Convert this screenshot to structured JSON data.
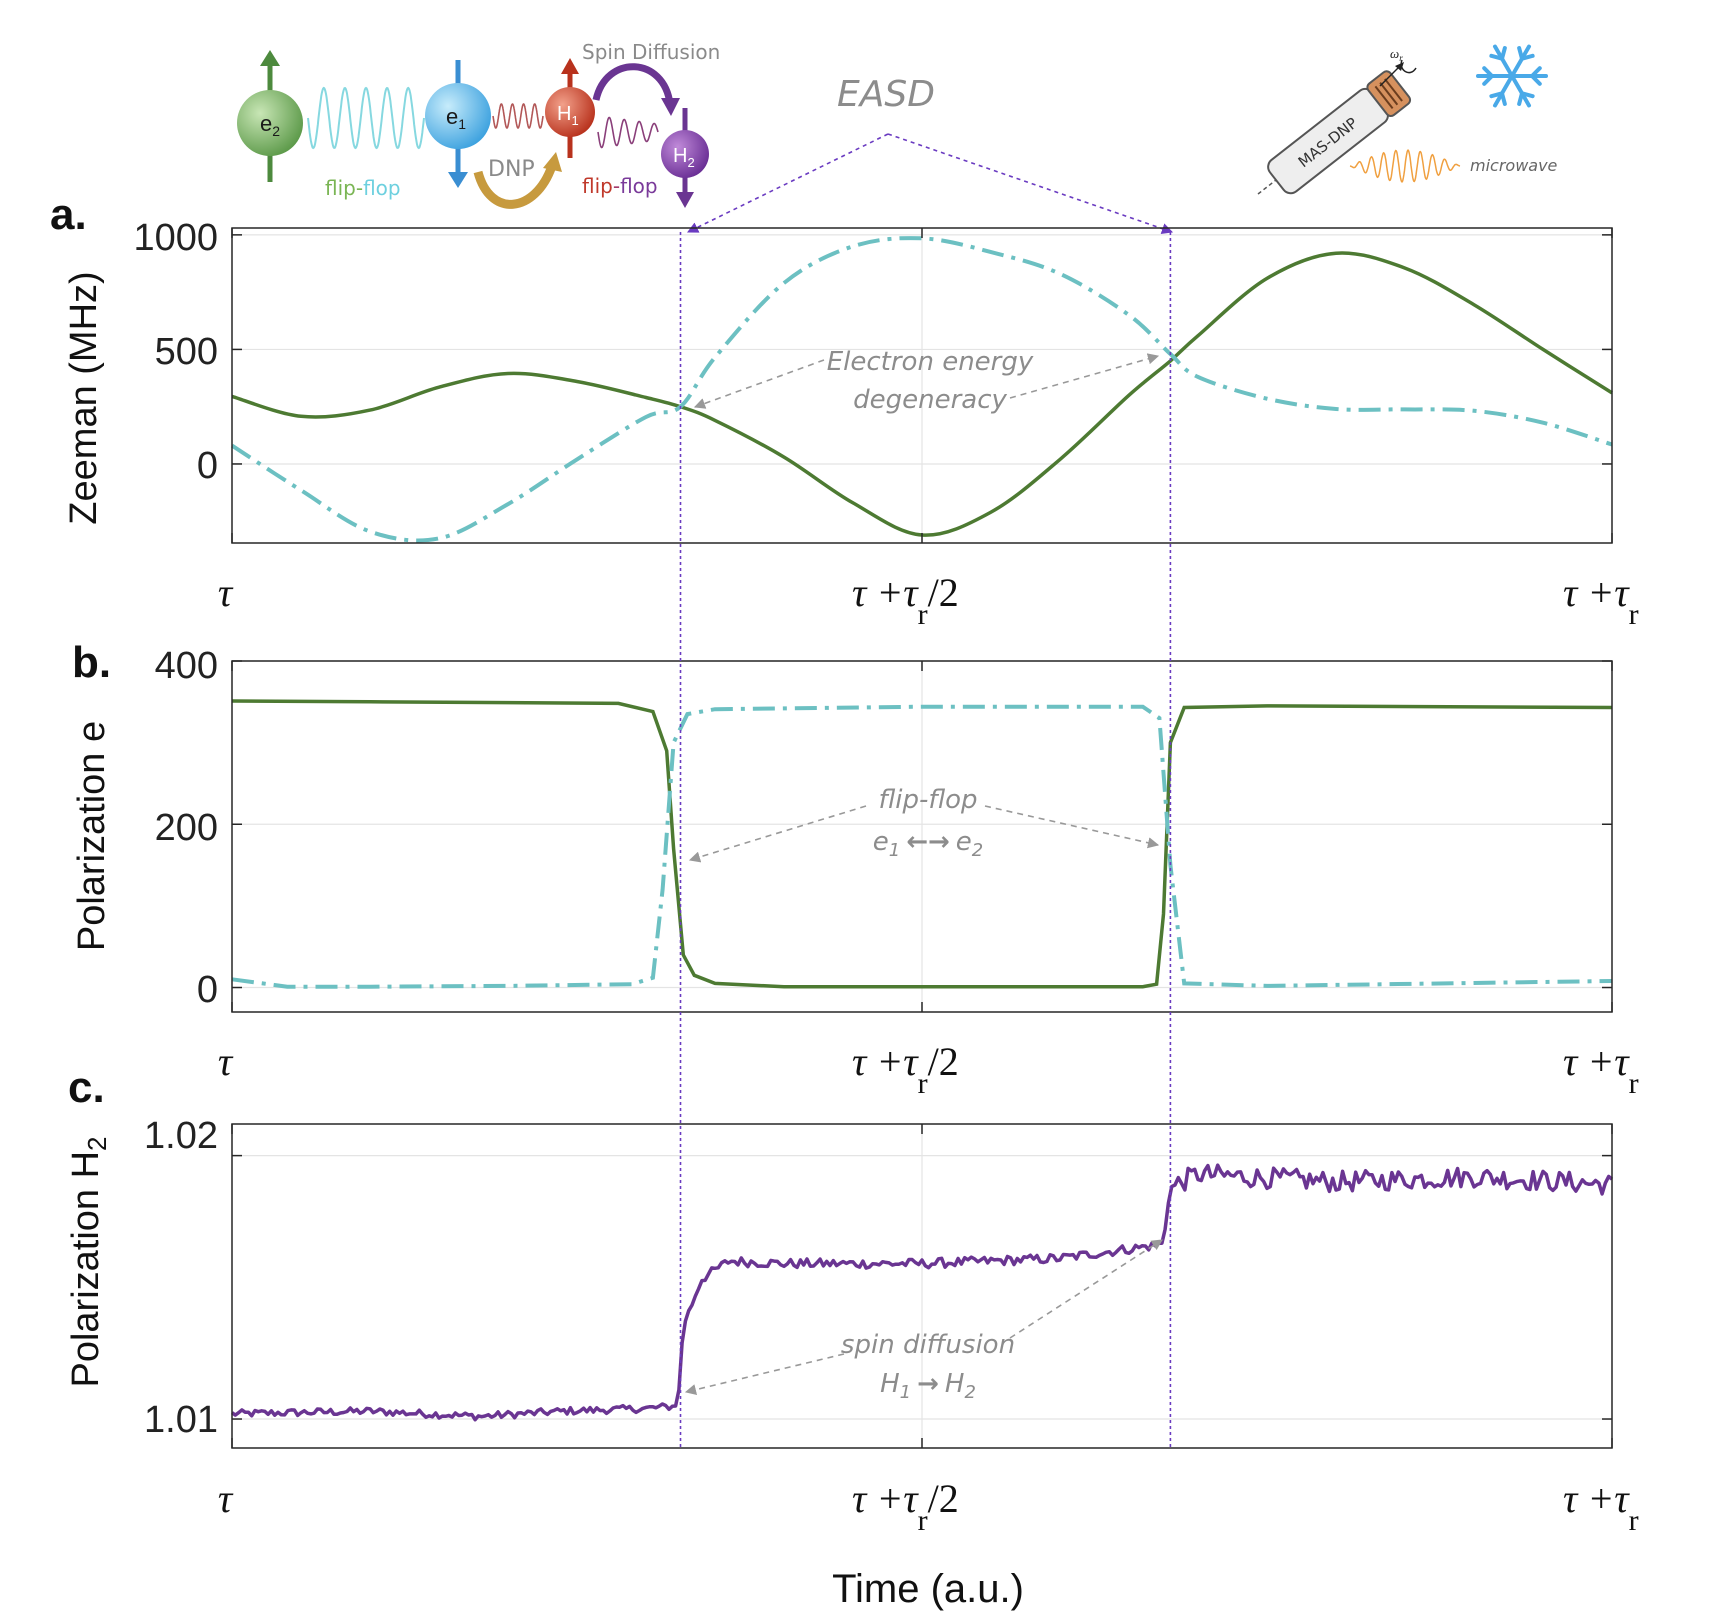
{
  "colors": {
    "e1_green": "#4d7a32",
    "e2_teal": "#6cc0c2",
    "h2_purple": "#6a3592",
    "easd_marker": "#6a3bc1",
    "annotation_gray": "#7f7f7f",
    "axis": "#262626",
    "grid": "#e4e4e4"
  },
  "schematic": {
    "spin_diffusion": "Spin Diffusion",
    "easd": "EASD",
    "e2": "e",
    "e2_sub": "2",
    "e1": "e",
    "e1_sub": "1",
    "h1": "H",
    "h1_sub": "1",
    "h2": "H",
    "h2_sub": "2",
    "flip": "flip",
    "dash": "-",
    "flop": "flop",
    "dnp": "DNP",
    "flip_flop": "flip-flop",
    "mas_dnp": "MAS-DNP",
    "omega": "ω",
    "omega_sub": "r",
    "microwave": "microwave",
    "icons": [
      "spin-up-arrow-icon",
      "spin-down-arrow-icon",
      "curved-arrow-icon",
      "rotor-icon",
      "snowflake-icon",
      "microwave-wave-icon"
    ]
  },
  "shared": {
    "x_tick_labels": [
      "τ",
      "τ +τ",
      "/2",
      "τ +τ"
    ],
    "x_tick_sub": "r",
    "x_axis_label": "Time (a.u.)",
    "x_range": [
      0,
      1
    ],
    "x_ticks": [
      0,
      0.5,
      1
    ],
    "easd_times": [
      0.325,
      0.68
    ]
  },
  "panels": {
    "a": {
      "letter": "a.",
      "ylabel": "Zeeman (MHz)",
      "annotation_line1": "Electron energy",
      "annotation_line2": "degeneracy",
      "ticks": [
        "1000",
        "500",
        "0"
      ]
    },
    "b": {
      "letter": "b.",
      "ylabel": "Polarization e",
      "annotation_line1": "flip-flop",
      "annotation_e1": "e",
      "annotation_e1_sub": "1",
      "annotation_arrow": "←→",
      "annotation_e2": "e",
      "annotation_e2_sub": "2",
      "ticks": [
        "400",
        "200",
        "0"
      ]
    },
    "c": {
      "letter": "c.",
      "ylabel": "Polarization H",
      "ylabel_sub": "2",
      "annotation_line1": "spin diffusion",
      "annotation_h1": "H",
      "annotation_h1_sub": "1",
      "annotation_arrow": "→",
      "annotation_h2": "H",
      "annotation_h2_sub": "2",
      "ticks": [
        "1.02",
        "1.01"
      ]
    }
  },
  "chart_data": [
    {
      "type": "line",
      "panel": "a",
      "ylabel": "Zeeman (MHz)",
      "ylim": [
        -345,
        1030
      ],
      "yticks": [
        0,
        500,
        1000
      ],
      "grid": true,
      "x": [
        0,
        0.05,
        0.1,
        0.15,
        0.2,
        0.25,
        0.3,
        0.325,
        0.35,
        0.4,
        0.45,
        0.5,
        0.55,
        0.6,
        0.65,
        0.68,
        0.7,
        0.75,
        0.8,
        0.85,
        0.9,
        0.95,
        1
      ],
      "series": [
        {
          "color_key": "e1_green",
          "style": "solid",
          "values": [
            295,
            208,
            235,
            335,
            395,
            360,
            290,
            250,
            190,
            30,
            -170,
            -310,
            -210,
            20,
            300,
            450,
            560,
            810,
            920,
            855,
            695,
            500,
            310
          ]
        },
        {
          "color_key": "e2_teal",
          "style": "dashdot",
          "values": [
            80,
            -115,
            -295,
            -325,
            -175,
            20,
            205,
            250,
            465,
            790,
            950,
            985,
            925,
            830,
            650,
            480,
            380,
            285,
            240,
            238,
            232,
            180,
            85
          ]
        }
      ]
    },
    {
      "type": "line",
      "panel": "b",
      "ylabel": "Polarization e",
      "ylim": [
        -30,
        400
      ],
      "yticks": [
        0,
        200,
        400
      ],
      "grid": true,
      "series": [
        {
          "color_key": "e1_green",
          "style": "solid",
          "x": [
            0,
            0.1,
            0.2,
            0.28,
            0.305,
            0.315,
            0.32,
            0.327,
            0.335,
            0.35,
            0.4,
            0.5,
            0.6,
            0.66,
            0.67,
            0.675,
            0.68,
            0.69,
            0.75,
            1
          ],
          "values": [
            351,
            350,
            349,
            348,
            338,
            290,
            170,
            40,
            15,
            5,
            1,
            1,
            1,
            1,
            4,
            90,
            300,
            343,
            345,
            343
          ]
        },
        {
          "color_key": "e2_teal",
          "style": "dashdot",
          "x": [
            0,
            0.04,
            0.1,
            0.2,
            0.29,
            0.305,
            0.312,
            0.32,
            0.33,
            0.35,
            0.5,
            0.66,
            0.672,
            0.68,
            0.69,
            0.75,
            1
          ],
          "values": [
            10,
            1,
            1,
            2,
            4,
            12,
            120,
            300,
            335,
            341,
            344,
            344,
            330,
            150,
            5,
            2,
            8
          ]
        }
      ]
    },
    {
      "type": "line",
      "panel": "c",
      "ylabel": "Polarization H2",
      "ylim": [
        1.0089,
        1.0212
      ],
      "yticks": [
        1.01,
        1.02
      ],
      "grid": true,
      "series": [
        {
          "color_key": "h2_purple",
          "style": "solid",
          "x": [
            0,
            0.1,
            0.18,
            0.24,
            0.3,
            0.323,
            0.327,
            0.34,
            0.36,
            0.4,
            0.5,
            0.6,
            0.67,
            0.675,
            0.68,
            0.7,
            0.8,
            0.9,
            1
          ],
          "values": [
            1.0102,
            1.0103,
            1.0101,
            1.0103,
            1.0104,
            1.0105,
            1.0135,
            1.0153,
            1.016,
            1.0159,
            1.0159,
            1.0161,
            1.0166,
            1.0167,
            1.0188,
            1.0193,
            1.019,
            1.0192,
            1.0189
          ],
          "noise": 0.0004
        }
      ]
    }
  ]
}
